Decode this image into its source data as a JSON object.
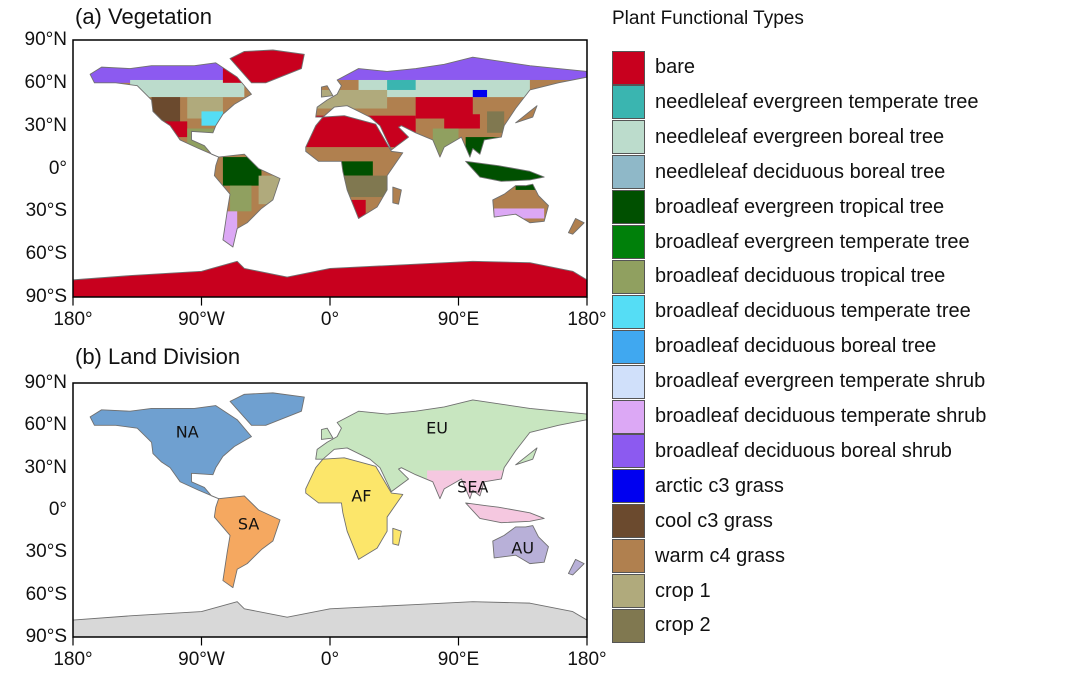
{
  "panels": [
    {
      "id": "a",
      "title": "(a) Vegetation"
    },
    {
      "id": "b",
      "title": "(b) Land Division"
    }
  ],
  "axes": {
    "y_ticks": [
      "90°N",
      "60°N",
      "30°N",
      "0°",
      "30°S",
      "60°S",
      "90°S"
    ],
    "y_values": [
      90,
      60,
      30,
      0,
      -30,
      -60,
      -90
    ],
    "x_ticks": [
      "180°",
      "90°W",
      "0°",
      "90°E",
      "180°"
    ],
    "x_values": [
      -180,
      -90,
      0,
      90,
      180
    ]
  },
  "legend": {
    "title": "Plant Functional Types",
    "items": [
      {
        "label": "bare",
        "color": "#c8001e"
      },
      {
        "label": "needleleaf evergreen temperate tree",
        "color": "#3ab5b0"
      },
      {
        "label": "needleleaf evergreen boreal tree",
        "color": "#bcdccc"
      },
      {
        "label": "needleleaf deciduous boreal tree",
        "color": "#8fb8c8"
      },
      {
        "label": "broadleaf evergreen tropical tree",
        "color": "#005000"
      },
      {
        "label": "broadleaf evergreen temperate tree",
        "color": "#00800a"
      },
      {
        "label": "broadleaf deciduous tropical tree",
        "color": "#90a060"
      },
      {
        "label": "broadleaf deciduous temperate tree",
        "color": "#55ddf5"
      },
      {
        "label": "broadleaf deciduous boreal tree",
        "color": "#40a8f0"
      },
      {
        "label": "broadleaf evergreen temperate shrub",
        "color": "#d0e0fa"
      },
      {
        "label": "broadleaf deciduous temperate shrub",
        "color": "#dca8f5"
      },
      {
        "label": "broadleaf deciduous boreal shrub",
        "color": "#8c5af0"
      },
      {
        "label": "arctic c3 grass",
        "color": "#0000f0"
      },
      {
        "label": "cool c3 grass",
        "color": "#6b4a2e"
      },
      {
        "label": "warm c4 grass",
        "color": "#b0804f"
      },
      {
        "label": "crop 1",
        "color": "#b0aa7c"
      },
      {
        "label": "crop 2",
        "color": "#807850"
      }
    ]
  },
  "regions": [
    {
      "label": "NA",
      "lon": -100,
      "lat": 55,
      "color": "#6fa0d0"
    },
    {
      "label": "EU",
      "lon": 75,
      "lat": 58,
      "color": "#c8e6c0"
    },
    {
      "label": "AF",
      "lon": 22,
      "lat": 10,
      "color": "#fce66a"
    },
    {
      "label": "SA",
      "lon": -57,
      "lat": -10,
      "color": "#f5a860"
    },
    {
      "label": "SEA",
      "lon": 100,
      "lat": 16,
      "color": "#f5c8e0"
    },
    {
      "label": "AU",
      "lon": 135,
      "lat": -27,
      "color": "#b8b0d8"
    }
  ],
  "antarctica_color": "#d8d8d8",
  "coast_color": "#707070"
}
